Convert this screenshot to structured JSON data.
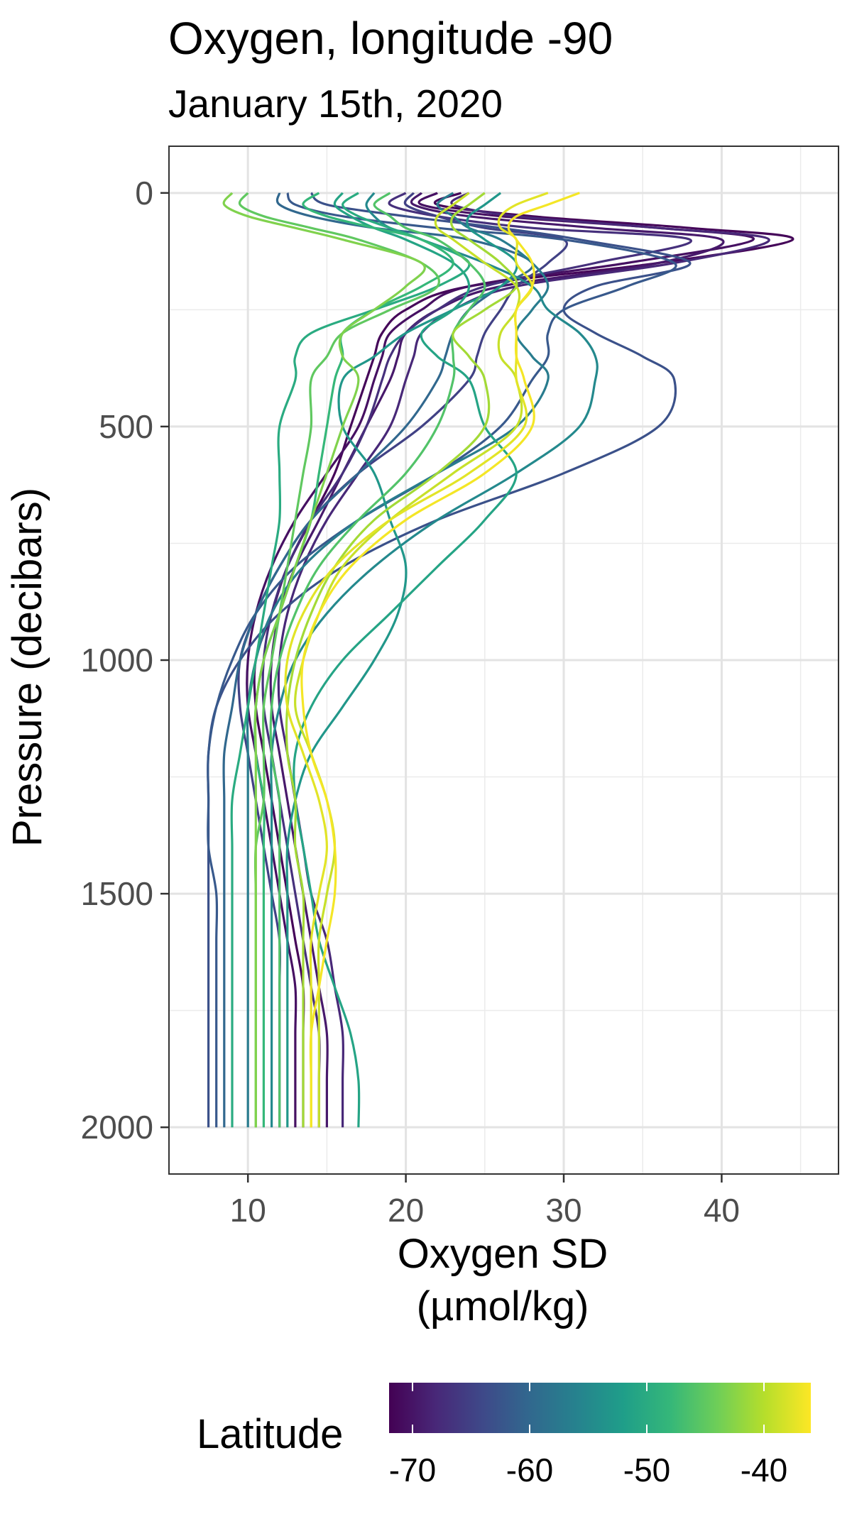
{
  "chart_data": {
    "type": "line",
    "title": "Oxygen, longitude -90",
    "subtitle": "January 15th, 2020",
    "xlabel": [
      "Oxygen SD",
      "(µmol/kg)"
    ],
    "ylabel": "Pressure (decibars)",
    "xlim": [
      5,
      47.4
    ],
    "ylim": [
      -100,
      2100
    ],
    "y_reversed": true,
    "x_ticks": [
      10,
      20,
      30,
      40
    ],
    "y_ticks": [
      0,
      500,
      1000,
      1500,
      2000
    ],
    "grid": true,
    "pressure_levels": [
      0,
      25,
      50,
      75,
      100,
      150,
      200,
      250,
      300,
      350,
      400,
      500,
      600,
      700,
      800,
      900,
      1000,
      1100,
      1200,
      1300,
      1400,
      1500,
      1600,
      1700,
      1800,
      1900,
      2000
    ],
    "legend": {
      "title": "Latitude",
      "type": "colorbar",
      "placement": "bottom",
      "range": [
        -72,
        -36
      ],
      "ticks": [
        -70,
        -60,
        -50,
        -40
      ],
      "colors": [
        "#440154",
        "#482878",
        "#3e4989",
        "#31688e",
        "#26828e",
        "#1f9e89",
        "#35b779",
        "#6ece58",
        "#b5de2b",
        "#fde725"
      ]
    },
    "series": [
      {
        "latitude": -71.5,
        "values": [
          23.5,
          22,
          28,
          38,
          44.5,
          36,
          24,
          20,
          18.5,
          18,
          17.5,
          16.5,
          15.5,
          14,
          12.5,
          11.5,
          10.5,
          10.5,
          11,
          11.5,
          12,
          12.5,
          13,
          13.5,
          13.5,
          13.5,
          13.5
        ]
      },
      {
        "latitude": -70.5,
        "values": [
          22,
          21,
          26,
          36,
          42,
          34,
          24,
          21,
          19,
          18.5,
          18,
          17,
          15,
          13,
          11.5,
          10.5,
          10,
          10,
          10.5,
          11,
          11.5,
          12,
          12.5,
          13,
          13,
          13,
          13
        ]
      },
      {
        "latitude": -69.5,
        "values": [
          21,
          20.5,
          24,
          32,
          40,
          36,
          26,
          22,
          20,
          19.5,
          19,
          17.5,
          16,
          14.5,
          13,
          12,
          11.5,
          11.5,
          12,
          12.5,
          13,
          13.5,
          14,
          14.5,
          15,
          15,
          15
        ]
      },
      {
        "latitude": -68,
        "values": [
          24,
          23,
          27,
          36,
          43,
          37,
          27,
          23,
          21,
          20.5,
          20,
          19,
          17,
          15,
          13.5,
          12.5,
          12,
          12,
          12.5,
          13,
          13.5,
          14,
          15,
          15.5,
          16,
          16,
          16
        ]
      },
      {
        "latitude": -67,
        "values": [
          20,
          19,
          22,
          28,
          38,
          32,
          25,
          22,
          20,
          19,
          18.5,
          17.5,
          16,
          14,
          12.5,
          11.5,
          11,
          11,
          11.5,
          12,
          12.5,
          13,
          13.5,
          14,
          14.5,
          14.5,
          14.5
        ]
      },
      {
        "latitude": -65,
        "values": [
          20.5,
          20,
          22,
          25,
          30,
          29,
          27,
          26,
          25,
          24.5,
          24,
          21,
          17,
          14,
          12,
          10.5,
          9.5,
          9.5,
          10,
          10.5,
          11,
          11.5,
          12,
          12,
          12,
          12,
          12
        ]
      },
      {
        "latitude": -63,
        "values": [
          14,
          15,
          20,
          26,
          31,
          38,
          32,
          30,
          32,
          35,
          37,
          36,
          30,
          22,
          16,
          12,
          9.5,
          8,
          7.5,
          7.5,
          7.5,
          7.5,
          7.5,
          7.5,
          7.5,
          7.5,
          7.5
        ]
      },
      {
        "latitude": -62,
        "values": [
          12.5,
          13,
          16,
          22,
          30,
          37,
          34,
          30,
          29,
          29,
          28,
          26,
          22,
          17,
          13,
          10.5,
          9,
          8,
          7.5,
          7.5,
          7.5,
          8,
          8,
          8,
          8,
          8,
          8
        ]
      },
      {
        "latitude": -60,
        "values": [
          12,
          12,
          14,
          18,
          24,
          28,
          26,
          24,
          23,
          22.5,
          22,
          20,
          17,
          14,
          12,
          10.5,
          9.5,
          9,
          8.5,
          8.5,
          8.5,
          8.5,
          8.5,
          8.5,
          8.5,
          8.5,
          8.5
        ]
      },
      {
        "latitude": -57,
        "values": [
          23,
          22,
          23,
          24,
          26,
          28,
          29,
          28,
          27,
          28,
          29,
          27,
          22,
          17,
          13.5,
          11.5,
          10.5,
          10,
          10,
          10,
          10,
          10,
          10,
          10,
          10,
          10,
          10
        ]
      },
      {
        "latitude": -55,
        "values": [
          18,
          17.5,
          18,
          19,
          21,
          25,
          28,
          29,
          31,
          32,
          32,
          31,
          27,
          22,
          18,
          15,
          13,
          12,
          11.5,
          11.5,
          11.5,
          11.5,
          11.5,
          11.5,
          11.5,
          11.5,
          11.5
        ]
      },
      {
        "latitude": -53,
        "values": [
          26,
          25,
          24,
          24,
          25,
          27,
          26,
          23,
          20,
          18,
          16,
          16,
          18,
          19,
          20,
          19.5,
          18,
          16,
          14,
          13,
          12.5,
          12.5,
          12.5,
          12.5,
          12.5,
          12.5,
          12.5
        ]
      },
      {
        "latitude": -51,
        "values": [
          16,
          15.5,
          16.5,
          18,
          20,
          23,
          24,
          23,
          21,
          22,
          24,
          25,
          27,
          25,
          22,
          19,
          16,
          14,
          13,
          13,
          13.5,
          14,
          14.5,
          15.5,
          16.5,
          17,
          17
        ]
      },
      {
        "latitude": -50,
        "values": [
          17,
          16,
          17,
          19,
          21,
          24,
          22,
          18,
          14,
          13,
          13,
          12,
          12,
          12,
          11.5,
          11,
          10.5,
          10,
          9.5,
          9,
          9,
          9,
          9,
          9,
          9,
          9,
          9
        ]
      },
      {
        "latitude": -48,
        "values": [
          14.5,
          13.5,
          15,
          18,
          21,
          23,
          21,
          18,
          16,
          16,
          15.5,
          15,
          14.5,
          14,
          13,
          12,
          11,
          10.5,
          10.5,
          11,
          11,
          11,
          11,
          11,
          11,
          11,
          11
        ]
      },
      {
        "latitude": -46,
        "values": [
          19,
          18,
          19,
          20,
          22,
          24,
          25,
          24,
          23,
          23,
          23,
          22,
          20,
          17,
          14.5,
          13,
          12,
          11.5,
          11.5,
          12,
          12,
          12,
          12,
          12,
          12,
          12,
          12
        ]
      },
      {
        "latitude": -45,
        "values": [
          10,
          9.5,
          11,
          14,
          17,
          21,
          22,
          19,
          16,
          15,
          14,
          14,
          13.5,
          13,
          12.5,
          12,
          11.5,
          11,
          11,
          11,
          10.5,
          10.5,
          10.5,
          10.5,
          10.5,
          10.5,
          10.5
        ]
      },
      {
        "latitude": -43,
        "values": [
          9,
          8.5,
          10,
          13,
          16,
          21,
          20,
          18,
          16,
          16,
          17,
          16,
          15,
          14,
          13,
          12,
          11,
          10.5,
          10.5,
          10.5,
          10.5,
          10.5,
          10.5,
          10.5,
          10.5,
          10.5,
          10.5
        ]
      },
      {
        "latitude": -41,
        "values": [
          25,
          24,
          23,
          23,
          24,
          26,
          27,
          25,
          23,
          24,
          25,
          25,
          22,
          18,
          15.5,
          14,
          13,
          12.5,
          12.5,
          13,
          13,
          13.5,
          13.5,
          13.5,
          13.5,
          13.5,
          13.5
        ]
      },
      {
        "latitude": -39,
        "values": [
          24,
          23,
          22,
          22,
          23,
          25,
          27,
          27,
          26,
          26,
          27,
          27,
          23,
          19,
          16,
          14.5,
          13.5,
          13,
          14,
          15,
          15.5,
          15,
          14.5,
          14.5,
          14.5,
          14.5,
          14.5
        ]
      },
      {
        "latitude": -37.5,
        "values": [
          29,
          27,
          26,
          26,
          27,
          27,
          28,
          27,
          27,
          27,
          27,
          27.5,
          24,
          19,
          15.5,
          13.5,
          12.5,
          12.5,
          13.5,
          14.5,
          15,
          14.5,
          14,
          14,
          14,
          14,
          14
        ]
      },
      {
        "latitude": -36.5,
        "values": [
          31,
          29,
          27,
          26.5,
          27,
          28,
          28,
          27,
          27,
          27,
          27.5,
          28,
          25,
          20,
          16.5,
          14.5,
          13.5,
          13.5,
          14,
          15,
          15.5,
          15.5,
          15,
          14.5,
          14,
          14,
          14
        ]
      }
    ]
  }
}
